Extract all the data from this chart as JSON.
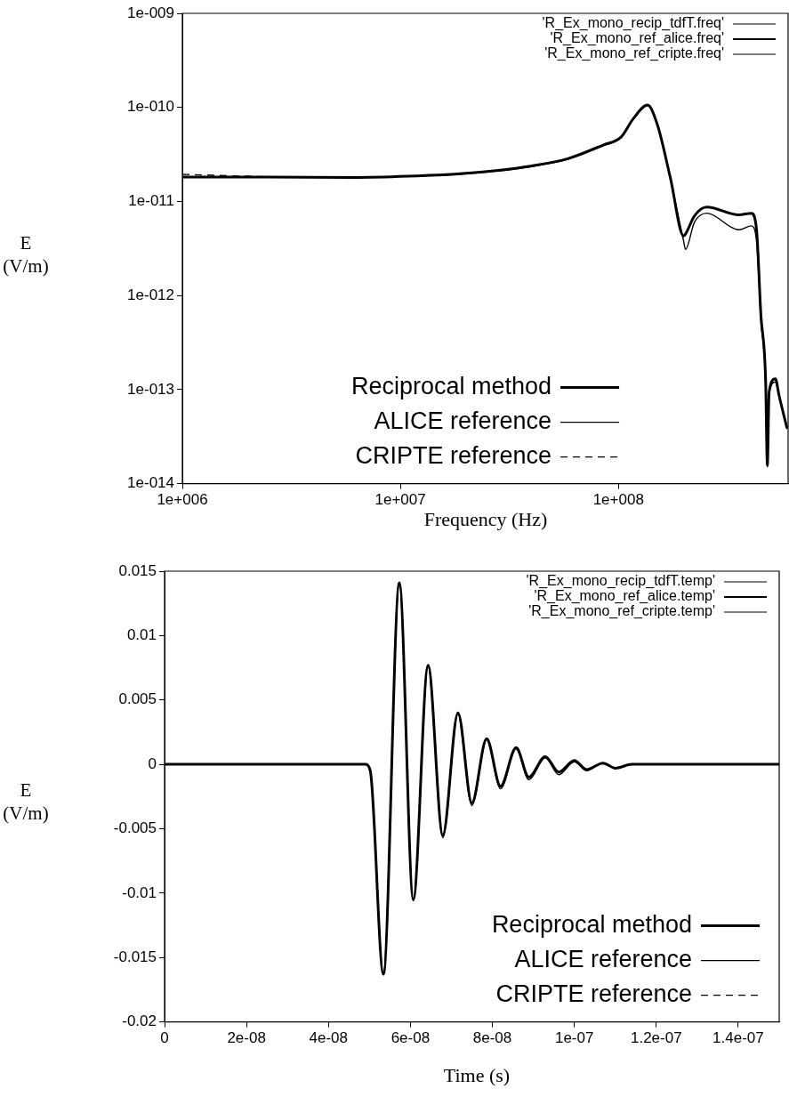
{
  "chart_data": [
    {
      "type": "line",
      "log": "xy",
      "xlabel": "Frequency (Hz)",
      "ylabel": "E (V/m)",
      "legend": "bottom",
      "xlim": [
        1000000,
        600000000
      ],
      "ylim": [
        1e-14,
        1e-09
      ],
      "xticks": [
        {
          "value": 1000000,
          "label": "1e+006"
        },
        {
          "value": 10000000,
          "label": "1e+007"
        },
        {
          "value": 100000000,
          "label": "1e+008"
        }
      ],
      "yticks": [
        {
          "value": 1e-14,
          "label": "1e-014"
        },
        {
          "value": 1e-13,
          "label": "1e-013"
        },
        {
          "value": 1e-12,
          "label": "1e-012"
        },
        {
          "value": 1e-11,
          "label": "1e-011"
        },
        {
          "value": 1e-10,
          "label": "1e-010"
        },
        {
          "value": 1e-09,
          "label": "1e-009"
        }
      ],
      "annotations": [
        "'R_Ex_mono_recip_tdfT.freq'",
        "'R_Ex_mono_ref_alice.freq'",
        "'R_Ex_mono_ref_cripte.freq'"
      ],
      "x": [
        1000000,
        2400000,
        6100000,
        11800000,
        17700000,
        27500000,
        40000000,
        58500000,
        85000000,
        103000000,
        117000000,
        136000000,
        151000000,
        173000000,
        199000000,
        203000000,
        223000000,
        254000000,
        357000000,
        407000000,
        430000000,
        450000000,
        473000000,
        482000000,
        491000000,
        525000000,
        545000000,
        593000000
      ],
      "series": [
        {
          "name": "Reciprocal method",
          "color": "#000000",
          "line_style": "solid",
          "values": [
            1.82e-11,
            1.82e-11,
            1.8e-11,
            1.87e-11,
            1.95e-11,
            2.13e-11,
            2.39e-11,
            2.85e-11,
            3.98e-11,
            4.86e-11,
            7.6e-11,
            1.06e-10,
            6.5e-11,
            1.79e-11,
            4.3e-12,
            4.5e-12,
            7e-12,
            8.7e-12,
            7.2e-12,
            7.5e-12,
            5e-12,
            6.3e-13,
            1.3e-13,
            1.56e-14,
            9.5e-14,
            1.3e-13,
            8.7e-14,
            3.9e-14
          ]
        },
        {
          "name": "ALICE reference",
          "color": "#000000",
          "line_style": "solid",
          "values": [
            1.82e-11,
            1.82e-11,
            1.8e-11,
            1.86e-11,
            1.93e-11,
            2.1e-11,
            2.35e-11,
            2.8e-11,
            3.9e-11,
            4.8e-11,
            7.5e-11,
            1.05e-10,
            6.5e-11,
            1.75e-11,
            3.8e-12,
            3.1e-12,
            6e-12,
            7.5e-12,
            5e-12,
            5.5e-12,
            3.8e-12,
            5.5e-13,
            1.2e-13,
            1.5e-14,
            9e-14,
            1.2e-13,
            8.5e-14,
            3.8e-14
          ]
        },
        {
          "name": "CRIPTE reference",
          "color": "#000000",
          "line_style": "dashed",
          "values": [
            1.94e-11,
            1.83e-11,
            null,
            null,
            null,
            null,
            null,
            null,
            null,
            null,
            null,
            null,
            null,
            null,
            null,
            null,
            null,
            null,
            null,
            null,
            null,
            null,
            null,
            null,
            null,
            null,
            null,
            null
          ]
        }
      ]
    },
    {
      "type": "line",
      "xlabel": "Time (s)",
      "ylabel": "E (V/m)",
      "legend": "bottom right",
      "xlim": [
        0,
        1.5e-07
      ],
      "ylim": [
        -0.02,
        0.015
      ],
      "xticks": [
        0,
        {
          "value": 2e-08,
          "label": "2e-08"
        },
        {
          "value": 4e-08,
          "label": "4e-08"
        },
        {
          "value": 6e-08,
          "label": "6e-08"
        },
        {
          "value": 8e-08,
          "label": "8e-08"
        },
        {
          "value": 1e-07,
          "label": "1e-07"
        },
        {
          "value": 1.2e-07,
          "label": "1.2e-07"
        },
        {
          "value": 1.4e-07,
          "label": "1.4e-07"
        }
      ],
      "yticks": [
        -0.02,
        -0.015,
        -0.01,
        -0.005,
        0,
        0.005,
        0.01,
        0.015
      ],
      "annotations": [
        "'R_Ex_mono_recip_tdfT.temp'",
        "'R_Ex_mono_ref_alice.temp'",
        "'R_Ex_mono_ref_cripte.temp'"
      ],
      "x": [
        0,
        4.9e-08,
        5.02e-08,
        5.34e-08,
        5.73e-08,
        6.07e-08,
        6.43e-08,
        6.79e-08,
        7.16e-08,
        7.5e-08,
        7.86e-08,
        8.2e-08,
        8.58e-08,
        8.89e-08,
        9.29e-08,
        9.62e-08,
        1e-07,
        1.03e-07,
        1.07e-07,
        1.1e-07,
        1.14e-07,
        1.2e-07,
        1.5e-07
      ],
      "series": [
        {
          "name": "Reciprocal method",
          "color": "#000000",
          "line_style": "solid",
          "values": [
            0,
            0,
            -0.0005,
            -0.0163,
            0.0141,
            -0.0105,
            0.0077,
            -0.0055,
            0.004,
            -0.003,
            0.002,
            -0.0017,
            0.0013,
            -0.001,
            0.0006,
            -0.0006,
            0.0003,
            -0.0004,
            0.0001,
            -0.0003,
            0,
            0,
            0
          ]
        },
        {
          "name": "ALICE reference",
          "color": "#000000",
          "line_style": "solid",
          "values": [
            0,
            0,
            -0.0005,
            -0.0162,
            0.014,
            -0.0106,
            0.0076,
            -0.0057,
            0.0039,
            -0.0032,
            0.0019,
            -0.0019,
            0.0012,
            -0.0012,
            0.0005,
            -0.0008,
            0.0002,
            -0.0005,
            0.0001,
            -0.0003,
            0,
            0,
            0
          ]
        },
        {
          "name": "CRIPTE reference",
          "color": "#000000",
          "line_style": "dashed",
          "values": [
            null,
            null,
            null,
            null,
            null,
            null,
            null,
            null,
            null,
            null,
            null,
            null,
            null,
            null,
            null,
            null,
            null,
            null,
            null,
            null,
            null,
            null,
            null
          ]
        }
      ]
    }
  ]
}
